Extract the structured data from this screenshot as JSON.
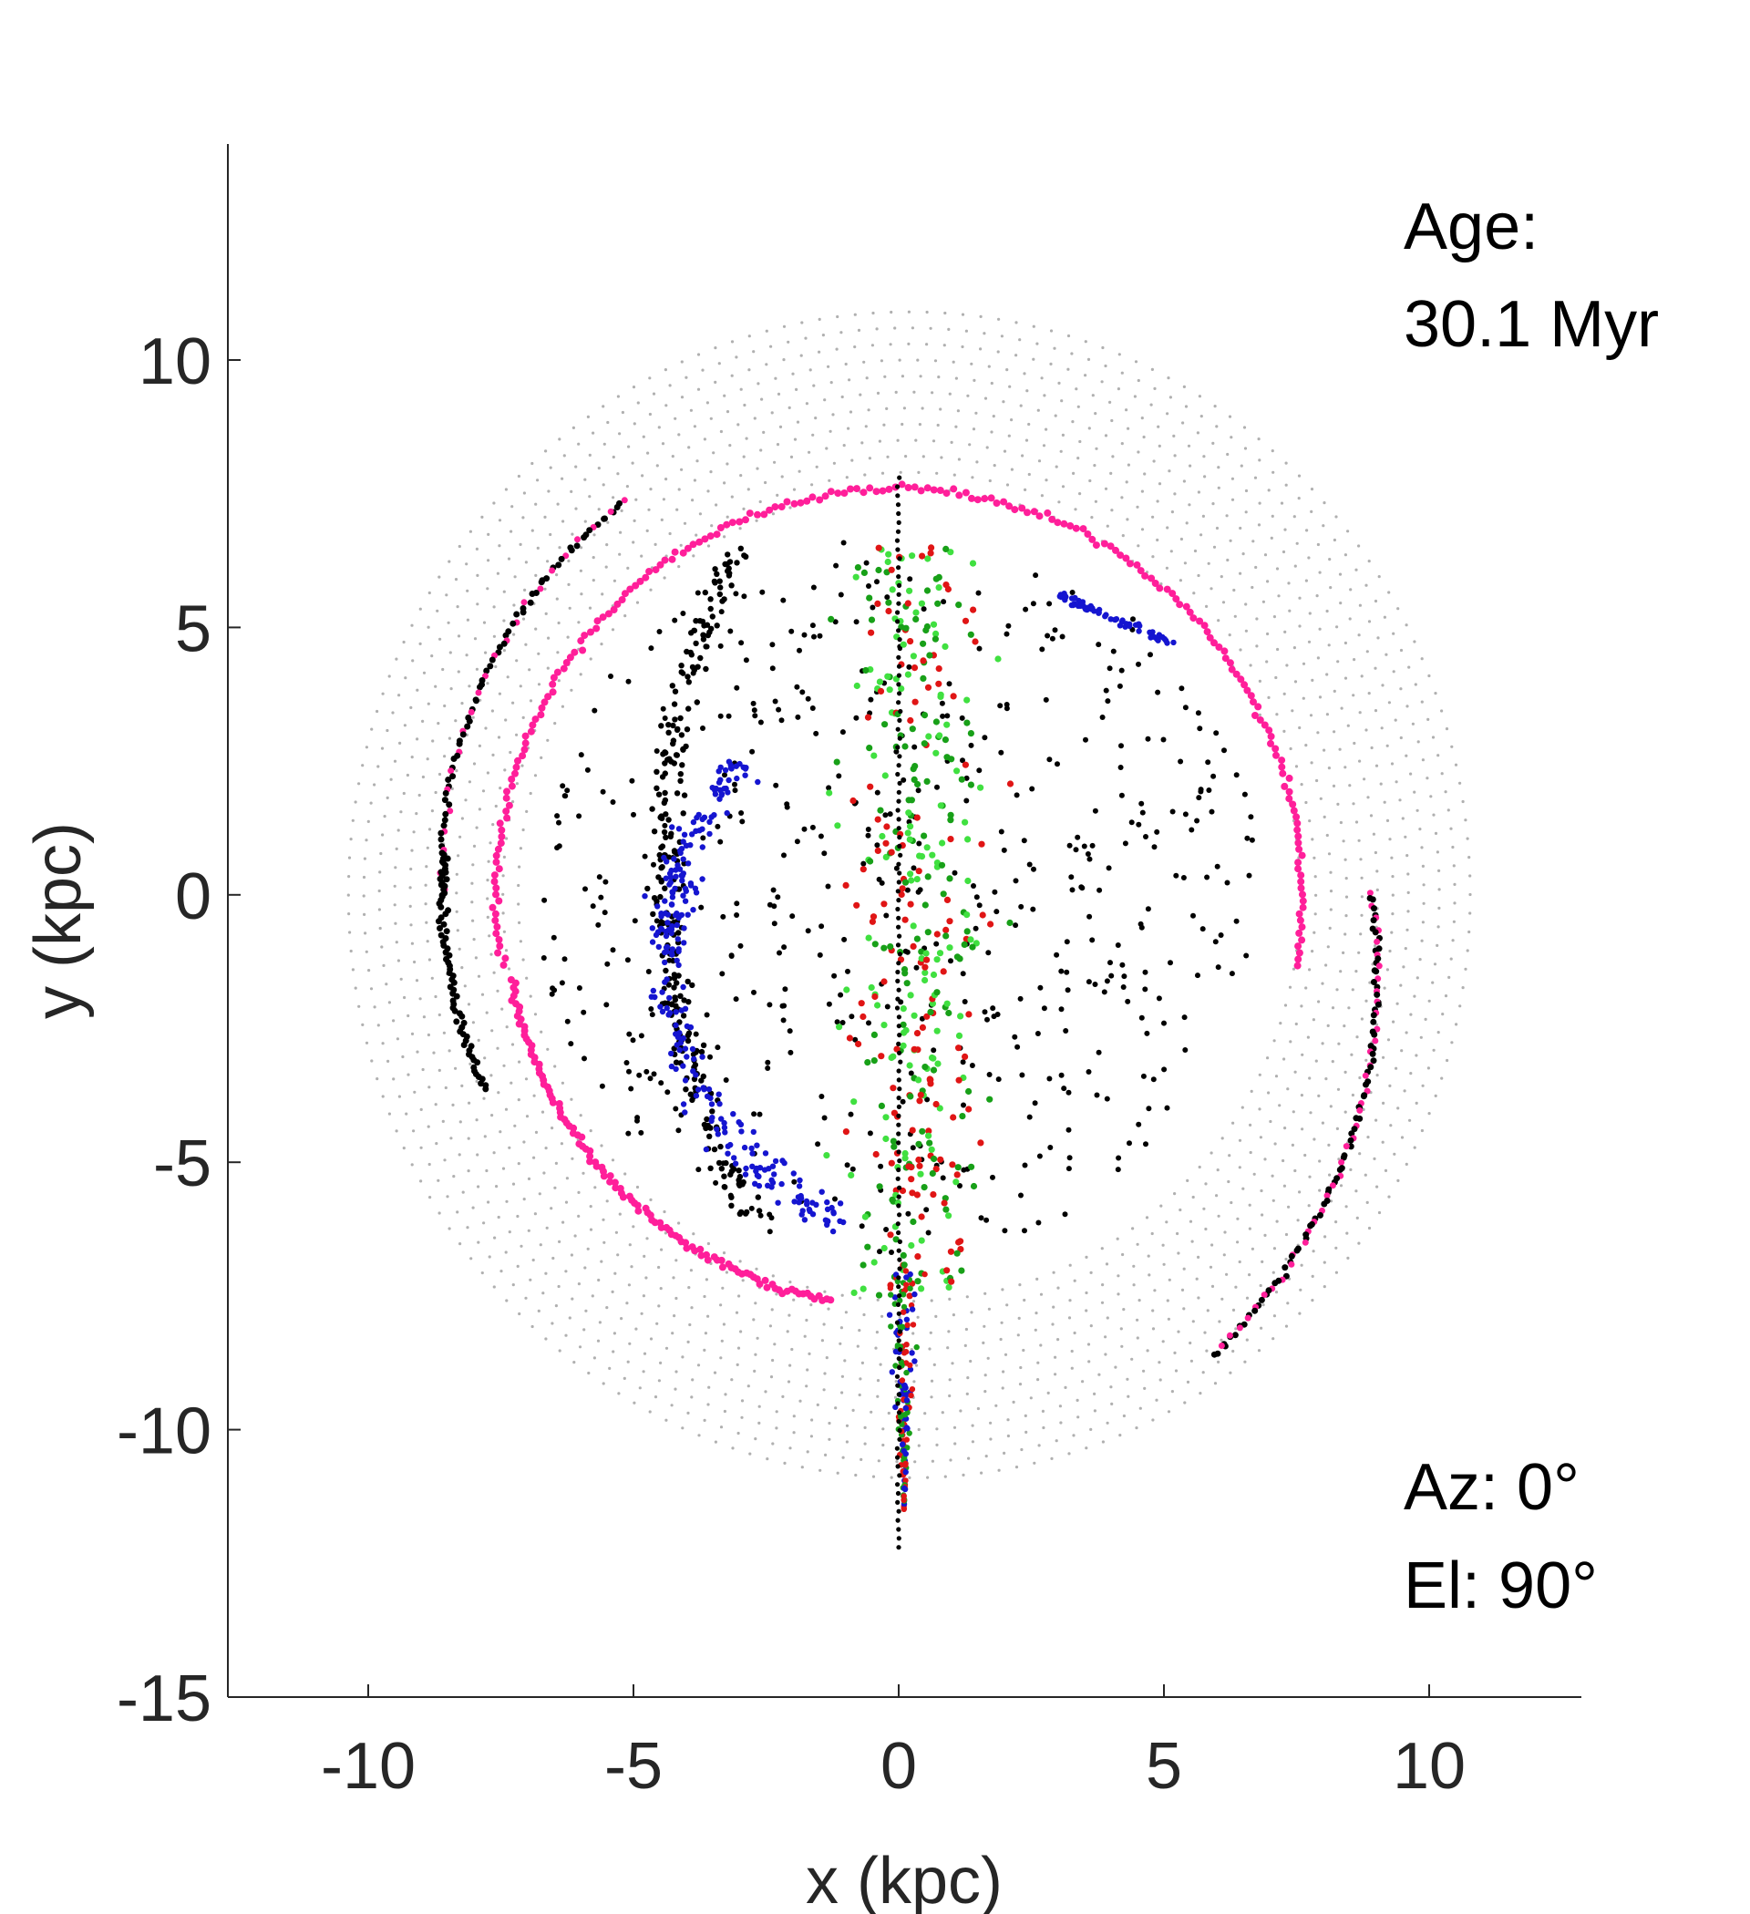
{
  "chart_data": {
    "type": "scatter",
    "title": "",
    "xlabel": "x (kpc)",
    "ylabel": "y (kpc)",
    "xlim": [
      -12.6,
      12.8
    ],
    "ylim": [
      -15.1,
      14.1
    ],
    "xticks": [
      -10,
      -5,
      0,
      5,
      10
    ],
    "yticks": [
      10,
      5,
      0,
      -5,
      -10,
      -15
    ],
    "xtick_labels": [
      "-10",
      "-5",
      "0",
      "5",
      "10"
    ],
    "ytick_labels": [
      "10",
      "5",
      "0",
      "-5",
      "-10",
      "-15"
    ],
    "grid": false,
    "legend": "none",
    "annotations": {
      "age_label": "Age:",
      "age_value": "30.1 Myr",
      "az_label": "Az: 0°",
      "el_label": "El: 90°"
    },
    "series": [
      {
        "color": "#b0b0b0",
        "structure": "outer disk, radius about 11 kpc"
      },
      {
        "color": "#ff1f9a",
        "structure": "ring, radius about 7.5 kpc"
      },
      {
        "color": "#000000",
        "structure": "inner arcs and outer arm segments"
      },
      {
        "color": "#1515d0",
        "structure": "inner arc"
      },
      {
        "color": "#18a018",
        "structure": "central cloud and tail"
      },
      {
        "color": "#40e040",
        "structure": "central cloud"
      },
      {
        "color": "#e01515",
        "structure": "central cloud and tail"
      }
    ]
  }
}
